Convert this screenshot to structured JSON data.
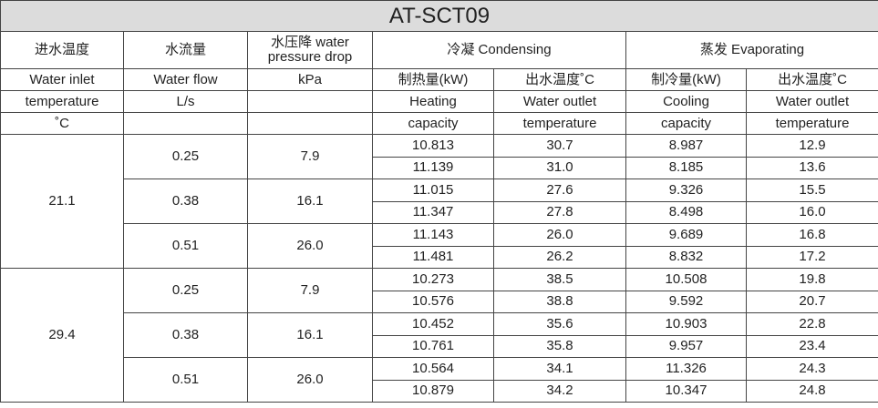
{
  "title": "AT-SCT09",
  "header": {
    "row1": [
      "进水温度",
      "水流量",
      "水压降 water pressure drop",
      "冷凝 Condensing",
      "蒸发 Evaporating"
    ],
    "row2": [
      "Water inlet",
      "Water flow",
      "kPa",
      "制热量(kW)",
      "出水温度˚C",
      "制冷量(kW)",
      "出水温度˚C"
    ],
    "row3": [
      "temperature",
      "L/s",
      "Heating",
      "Water outlet",
      "Cooling",
      "Water outlet"
    ],
    "row4": [
      "˚C",
      "capacity",
      "temperature",
      "capacity",
      "temperature"
    ]
  },
  "groups": [
    {
      "inlet_temperature": "21.1",
      "flows": [
        {
          "flow": "0.25",
          "pressure_drop": "7.9",
          "rows": [
            [
              "10.813",
              "30.7",
              "8.987",
              "12.9"
            ],
            [
              "11.139",
              "31.0",
              "8.185",
              "13.6"
            ]
          ]
        },
        {
          "flow": "0.38",
          "pressure_drop": "16.1",
          "rows": [
            [
              "11.015",
              "27.6",
              "9.326",
              "15.5"
            ],
            [
              "11.347",
              "27.8",
              "8.498",
              "16.0"
            ]
          ]
        },
        {
          "flow": "0.51",
          "pressure_drop": "26.0",
          "rows": [
            [
              "11.143",
              "26.0",
              "9.689",
              "16.8"
            ],
            [
              "11.481",
              "26.2",
              "8.832",
              "17.2"
            ]
          ]
        }
      ]
    },
    {
      "inlet_temperature": "29.4",
      "flows": [
        {
          "flow": "0.25",
          "pressure_drop": "7.9",
          "rows": [
            [
              "10.273",
              "38.5",
              "10.508",
              "19.8"
            ],
            [
              "10.576",
              "38.8",
              "9.592",
              "20.7"
            ]
          ]
        },
        {
          "flow": "0.38",
          "pressure_drop": "16.1",
          "rows": [
            [
              "10.452",
              "35.6",
              "10.903",
              "22.8"
            ],
            [
              "10.761",
              "35.8",
              "9.957",
              "23.4"
            ]
          ]
        },
        {
          "flow": "0.51",
          "pressure_drop": "26.0",
          "rows": [
            [
              "10.564",
              "34.1",
              "11.326",
              "24.3"
            ],
            [
              "10.879",
              "34.2",
              "10.347",
              "24.8"
            ]
          ]
        }
      ]
    }
  ]
}
